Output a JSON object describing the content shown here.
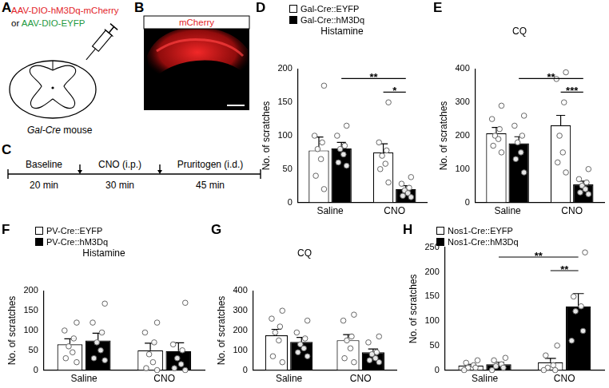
{
  "diagram": {
    "A": {
      "panel": "A",
      "vector_1": "AAV-DIO-hM3Dq-mCherry",
      "joiner": "or",
      "vector_2": "AAV-DIO-EYFP",
      "mouse": "Gal-Cre",
      "mouse_suffix": "mouse"
    },
    "B": {
      "panel": "B",
      "label": "mCherry"
    },
    "C": {
      "panel": "C",
      "steps": [
        {
          "label": "Baseline",
          "duration": "20 min"
        },
        {
          "label": "CNO (i.p.)",
          "duration": "30 min"
        },
        {
          "label": "Pruritogen (i.d.)",
          "duration": "45 min"
        }
      ]
    }
  },
  "chart_data": [
    {
      "panel": "D",
      "type": "bar",
      "title": "Histamine",
      "y_label": "No. of scratches",
      "categories": [
        "Saline",
        "CNO"
      ],
      "series": [
        {
          "name": "Gal-Cre::EYFP",
          "color": "#ffffff",
          "values": [
            78,
            75
          ],
          "errors": [
            20,
            13
          ],
          "points": [
            [
              175,
              100,
              90,
              80,
              65,
              40,
              20
            ],
            [
              150,
              90,
              78,
              70,
              58,
              50,
              30
            ]
          ]
        },
        {
          "name": "Gal-Cre::hM3Dq",
          "color": "#000000",
          "values": [
            81,
            20
          ],
          "errors": [
            9,
            5
          ],
          "points": [
            [
              115,
              100,
              85,
              80,
              72,
              60,
              55
            ],
            [
              38,
              28,
              22,
              18,
              14,
              10,
              8
            ]
          ]
        }
      ],
      "ylim": [
        0,
        200
      ],
      "yticks": [
        0,
        50,
        100,
        150,
        200
      ],
      "grid": false,
      "legend": "top-left",
      "significance": [
        {
          "from": [
            0,
            1
          ],
          "to": [
            1,
            1
          ],
          "label": "**"
        },
        {
          "from": [
            1,
            0
          ],
          "to": [
            1,
            1
          ],
          "label": "*"
        }
      ]
    },
    {
      "panel": "E",
      "type": "bar",
      "title": "CQ",
      "y_label": "No. of scratches",
      "categories": [
        "Saline",
        "CNO"
      ],
      "series": [
        {
          "color": "#ffffff",
          "values": [
            207,
            231
          ],
          "errors": [
            18,
            30
          ],
          "points": [
            [
              290,
              250,
              220,
              200,
              190,
              170,
              150
            ],
            [
              390,
              370,
              300,
              200,
              150,
              120,
              90
            ]
          ]
        },
        {
          "color": "#000000",
          "values": [
            177,
            54
          ],
          "errors": [
            20,
            10
          ],
          "points": [
            [
              260,
              230,
              200,
              180,
              150,
              130,
              90
            ],
            [
              100,
              70,
              60,
              50,
              40,
              30,
              25
            ]
          ]
        }
      ],
      "ylim": [
        0,
        400
      ],
      "yticks": [
        0,
        100,
        200,
        300,
        400
      ],
      "grid": false,
      "significance": [
        {
          "from": [
            0,
            1
          ],
          "to": [
            1,
            1
          ],
          "label": "**"
        },
        {
          "from": [
            1,
            0
          ],
          "to": [
            1,
            1
          ],
          "label": "***"
        }
      ]
    },
    {
      "panel": "F",
      "type": "bar",
      "title": "Histamine",
      "y_label": "No. of scratches",
      "categories": [
        "Saline",
        "CNO"
      ],
      "series": [
        {
          "name": "PV-Cre::EYFP",
          "color": "#ffffff",
          "values": [
            65,
            50
          ],
          "errors": [
            14,
            18
          ],
          "points": [
            [
              120,
              100,
              80,
              60,
              45,
              30,
              20
            ],
            [
              120,
              95,
              70,
              40,
              20,
              5,
              0
            ]
          ]
        },
        {
          "name": "PV-Cre::hM3Dq",
          "color": "#000000",
          "values": [
            75,
            48
          ],
          "errors": [
            18,
            21
          ],
          "points": [
            [
              168,
              120,
              95,
              70,
              50,
              30,
              25
            ],
            [
              170,
              65,
              50,
              30,
              15,
              5,
              0
            ]
          ]
        }
      ],
      "ylim": [
        0,
        200
      ],
      "yticks": [
        0,
        50,
        100,
        150,
        200
      ],
      "grid": false,
      "legend": "top-left"
    },
    {
      "panel": "G",
      "type": "bar",
      "title": "CQ",
      "y_label": "No. of scratches",
      "categories": [
        "Saline",
        "CNO"
      ],
      "series": [
        {
          "color": "#ffffff",
          "values": [
            176,
            151
          ],
          "errors": [
            30,
            28
          ],
          "points": [
            [
              300,
              260,
              220,
              190,
              150,
              70,
              40
            ],
            [
              280,
              250,
              170,
              150,
              110,
              60,
              40
            ]
          ]
        },
        {
          "color": "#000000",
          "values": [
            143,
            90
          ],
          "errors": [
            22,
            17
          ],
          "points": [
            [
              250,
              190,
              160,
              130,
              110,
              90,
              70
            ],
            [
              170,
              140,
              90,
              80,
              60,
              50,
              40
            ]
          ]
        }
      ],
      "ylim": [
        0,
        400
      ],
      "yticks": [
        0,
        100,
        200,
        300,
        400
      ],
      "grid": false
    },
    {
      "panel": "H",
      "type": "bar",
      "y_label": "No. of scratches",
      "categories": [
        "Saline",
        "CNO"
      ],
      "series": [
        {
          "name": "Nos1-Cre::EYFP",
          "color": "#ffffff",
          "values": [
            9,
            16
          ],
          "errors": [
            3,
            8
          ],
          "points": [
            [
              20,
              15,
              10,
              5,
              5,
              0
            ],
            [
              50,
              30,
              10,
              5,
              0,
              0
            ]
          ]
        },
        {
          "name": "Nos1-Cre::hM3Dq",
          "color": "#000000",
          "values": [
            12,
            130
          ],
          "errors": [
            4,
            26
          ],
          "points": [
            [
              25,
              20,
              12,
              8,
              5,
              0
            ],
            [
              240,
              150,
              130,
              120,
              80,
              60
            ]
          ]
        }
      ],
      "ylim": [
        0,
        250
      ],
      "yticks": [
        0,
        50,
        100,
        150,
        200,
        250
      ],
      "grid": false,
      "legend": "top-left",
      "significance": [
        {
          "from": [
            0,
            1
          ],
          "to": [
            1,
            1
          ],
          "label": "**"
        },
        {
          "from": [
            1,
            0
          ],
          "to": [
            1,
            1
          ],
          "label": "**"
        }
      ]
    }
  ]
}
